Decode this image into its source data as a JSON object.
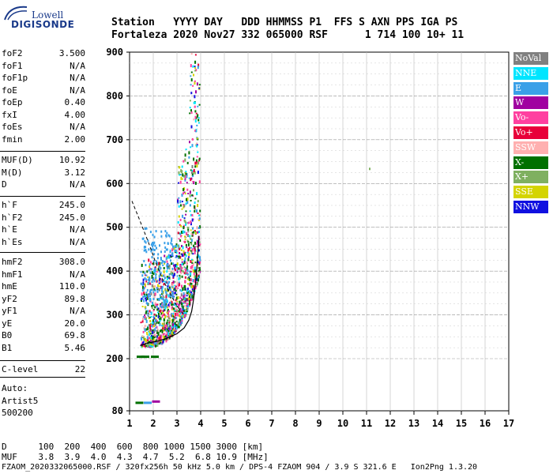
{
  "logo": {
    "line1": "Lowell",
    "line2": "DIGISONDE"
  },
  "header": {
    "labels_row": "Station   YYYY DAY   DDD HHMMSS P1  FFS S AXN PPS IGA PS",
    "values_row": "Fortaleza 2020 Nov27 332 065000 RSF      1 714 100 10+ 11"
  },
  "params_group1": [
    {
      "name": "foF2",
      "value": "3.500"
    },
    {
      "name": "foF1",
      "value": "N/A"
    },
    {
      "name": "foF1p",
      "value": "N/A"
    },
    {
      "name": "foE",
      "value": "N/A"
    },
    {
      "name": "foEp",
      "value": "0.40"
    },
    {
      "name": "fxI",
      "value": "4.00"
    },
    {
      "name": "foEs",
      "value": "N/A"
    },
    {
      "name": "fmin",
      "value": "2.00"
    }
  ],
  "params_group2": [
    {
      "name": "MUF(D)",
      "value": "10.92"
    },
    {
      "name": "M(D)",
      "value": "3.12"
    },
    {
      "name": "D",
      "value": "N/A"
    }
  ],
  "params_group3": [
    {
      "name": "h`F",
      "value": "245.0"
    },
    {
      "name": "h`F2",
      "value": "245.0"
    },
    {
      "name": "h`E",
      "value": "N/A"
    },
    {
      "name": "h`Es",
      "value": "N/A"
    }
  ],
  "params_group4": [
    {
      "name": "hmF2",
      "value": "308.0"
    },
    {
      "name": "hmF1",
      "value": "N/A"
    },
    {
      "name": "hmE",
      "value": "110.0"
    },
    {
      "name": "yF2",
      "value": "89.8"
    },
    {
      "name": "yF1",
      "value": "N/A"
    },
    {
      "name": "yE",
      "value": "20.0"
    },
    {
      "name": "B0",
      "value": "69.8"
    },
    {
      "name": "B1",
      "value": "5.46"
    }
  ],
  "params_group5": [
    {
      "name": "C-level",
      "value": "22"
    }
  ],
  "auto": {
    "line1": "Auto:",
    "line2": "Artist5",
    "line3": "500200"
  },
  "legend": [
    {
      "label": "NoVal",
      "color": "#808080"
    },
    {
      "label": "NNE",
      "color": "#00e5ff"
    },
    {
      "label": "E",
      "color": "#3aa0e8"
    },
    {
      "label": "W",
      "color": "#a000a0"
    },
    {
      "label": "Vo-",
      "color": "#ff40a0"
    },
    {
      "label": "Vo+",
      "color": "#e8003a"
    },
    {
      "label": "SSW",
      "color": "#ffb0b0"
    },
    {
      "label": "X-",
      "color": "#007000"
    },
    {
      "label": "X+",
      "color": "#7fb060"
    },
    {
      "label": "SSE",
      "color": "#d4d400"
    },
    {
      "label": "NNW",
      "color": "#1010e0"
    }
  ],
  "chart_data": {
    "type": "scatter",
    "x_ticks": [
      "1",
      "2",
      "3",
      "4",
      "5",
      "6",
      "7",
      "8",
      "9",
      "10",
      "11",
      "12",
      "13",
      "14",
      "15",
      "16",
      "17"
    ],
    "y_ticks": [
      "80",
      "200",
      "300",
      "400",
      "500",
      "600",
      "700",
      "800",
      "900"
    ],
    "x_range": [
      1,
      17
    ],
    "y_range": [
      80,
      900
    ],
    "x_unit": "MHz",
    "y_unit": "km",
    "profile_curve": [
      {
        "x": 1.45,
        "y": 230
      },
      {
        "x": 1.8,
        "y": 236
      },
      {
        "x": 2.2,
        "y": 240
      },
      {
        "x": 2.6,
        "y": 247
      },
      {
        "x": 3.0,
        "y": 257
      },
      {
        "x": 3.3,
        "y": 270
      },
      {
        "x": 3.5,
        "y": 288
      },
      {
        "x": 3.62,
        "y": 308
      },
      {
        "x": 3.7,
        "y": 335
      },
      {
        "x": 3.8,
        "y": 380
      },
      {
        "x": 3.88,
        "y": 440
      },
      {
        "x": 3.93,
        "y": 480
      }
    ],
    "dashed_curve": [
      {
        "x": 1.1,
        "y": 560
      },
      {
        "x": 1.4,
        "y": 520
      },
      {
        "x": 1.8,
        "y": 465
      },
      {
        "x": 2.1,
        "y": 420
      },
      {
        "x": 2.4,
        "y": 380
      },
      {
        "x": 2.7,
        "y": 350
      },
      {
        "x": 3.0,
        "y": 320
      },
      {
        "x": 3.3,
        "y": 300
      }
    ],
    "isolated_points": [
      {
        "x": 11.1,
        "y": 636,
        "color": "#7fb060"
      },
      {
        "x": 1.3,
        "y": 207,
        "color": "#007000"
      },
      {
        "x": 1.5,
        "y": 207,
        "color": "#007000"
      },
      {
        "x": 1.9,
        "y": 207,
        "color": "#007000"
      },
      {
        "x": 1.25,
        "y": 101,
        "color": "#007000"
      },
      {
        "x": 1.6,
        "y": 101,
        "color": "#3aa0e8"
      },
      {
        "x": 1.95,
        "y": 104,
        "color": "#a000a0"
      }
    ]
  },
  "bottom": {
    "line1": "D      100  200  400  600  800 1000 1500 3000 [km]",
    "line2": "MUF    3.8  3.9  4.0  4.3  4.7  5.2  6.8 10.9 [MHz]",
    "line3": "FZAOM_2020332065000.RSF / 320fx256h 50 kHz 5.0 km / DPS-4 FZAOM 904 / 3.9 S 321.6 E   Ion2Png 1.3.20"
  }
}
